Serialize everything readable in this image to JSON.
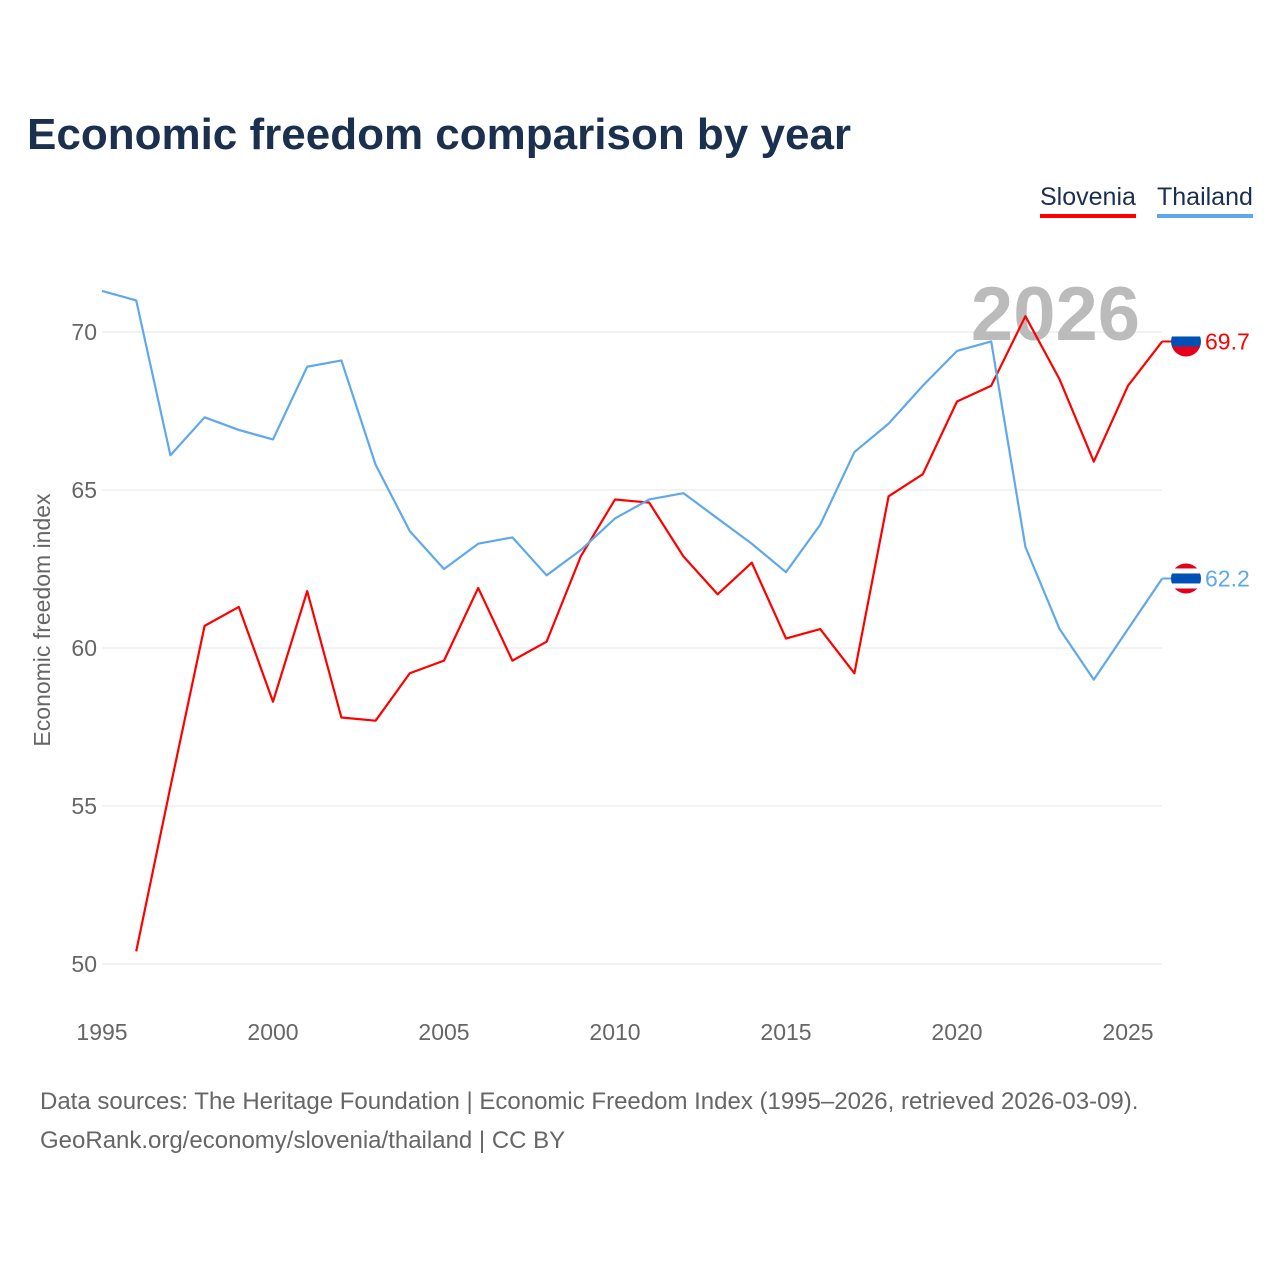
{
  "title": "Economic freedom comparison by year",
  "footer": {
    "line1": "Data sources: The Heritage Foundation | Economic Freedom Index (1995–2026, retrieved 2026-03-09).",
    "line2": "GeoRank.org/economy/slovenia/thailand | CC BY"
  },
  "chart_data": {
    "type": "line",
    "title": "Economic freedom comparison by year",
    "xlabel": "",
    "ylabel": "Economic freedom index",
    "xlim": [
      1995,
      2026
    ],
    "ylim": [
      50,
      72
    ],
    "x_ticks": [
      "1995",
      "2000",
      "2005",
      "2010",
      "2015",
      "2020",
      "2025"
    ],
    "y_ticks": [
      "50",
      "55",
      "60",
      "65",
      "70"
    ],
    "grid": true,
    "legend_placement": "top-right",
    "year_watermark": "2026",
    "series": [
      {
        "name": "Slovenia",
        "color": "#ff0000",
        "end_label": "69.7",
        "x": [
          1996,
          1997,
          1998,
          1999,
          2000,
          2001,
          2002,
          2003,
          2004,
          2005,
          2006,
          2007,
          2008,
          2009,
          2010,
          2011,
          2012,
          2013,
          2014,
          2015,
          2016,
          2017,
          2018,
          2019,
          2020,
          2021,
          2022,
          2023,
          2024,
          2025,
          2026
        ],
        "values": [
          50.4,
          55.6,
          60.7,
          61.3,
          58.3,
          61.8,
          57.8,
          57.7,
          59.2,
          59.6,
          61.9,
          59.6,
          60.2,
          62.9,
          64.7,
          64.6,
          62.9,
          61.7,
          62.7,
          60.3,
          60.6,
          59.2,
          64.8,
          65.5,
          67.8,
          68.3,
          70.5,
          68.5,
          65.9,
          68.3,
          69.7
        ]
      },
      {
        "name": "Thailand",
        "color": "#5fa8ec",
        "end_label": "62.2",
        "x": [
          1995,
          1996,
          1997,
          1998,
          1999,
          2000,
          2001,
          2002,
          2003,
          2004,
          2005,
          2006,
          2007,
          2008,
          2009,
          2010,
          2011,
          2012,
          2013,
          2014,
          2015,
          2016,
          2017,
          2018,
          2019,
          2020,
          2021,
          2022,
          2023,
          2024,
          2025,
          2026
        ],
        "values": [
          71.3,
          71.0,
          66.1,
          67.3,
          66.9,
          66.6,
          68.9,
          69.1,
          65.8,
          63.7,
          62.5,
          63.3,
          63.5,
          62.3,
          63.1,
          64.1,
          64.7,
          64.9,
          64.1,
          63.3,
          62.4,
          63.9,
          66.2,
          67.1,
          68.3,
          69.4,
          69.7,
          63.2,
          60.6,
          59.0,
          60.6,
          62.2
        ]
      }
    ]
  }
}
